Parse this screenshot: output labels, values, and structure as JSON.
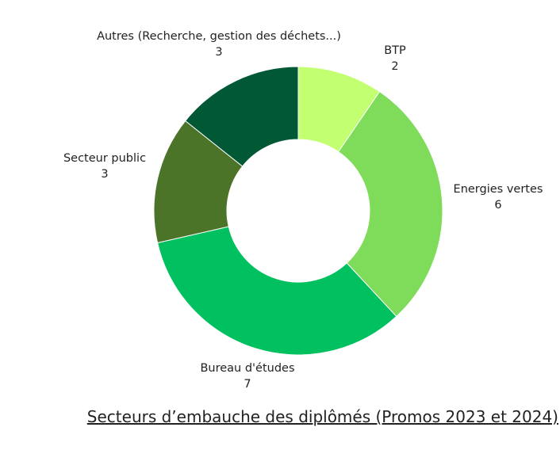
{
  "chart_data": {
    "type": "pie",
    "donut": true,
    "title": "Secteurs d’embauche des diplômés (Promos 2023 et 2024)",
    "slices": [
      {
        "label": "BTP",
        "value": 2,
        "color": "#c2ff71"
      },
      {
        "label": "Energies vertes",
        "value": 6,
        "color": "#7fdb5a"
      },
      {
        "label": "Bureau d'études",
        "value": 7,
        "color": "#00c060"
      },
      {
        "label": "Secteur public",
        "value": 3,
        "color": "#4c7429"
      },
      {
        "label": "Autres (Recherche, gestion des déchets...)",
        "value": 3,
        "color": "#005834"
      }
    ],
    "start_angle": "12 o'clock",
    "direction": "clockwise",
    "legend": "none"
  }
}
